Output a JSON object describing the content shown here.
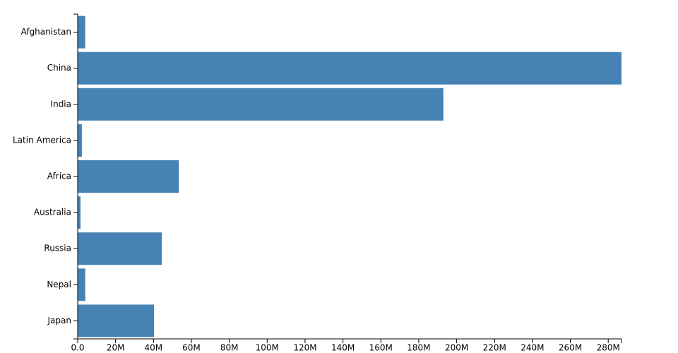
{
  "chart_data": {
    "type": "bar",
    "categories": [
      "Afghanistan",
      "China",
      "India",
      "Latin America",
      "Africa",
      "Australia",
      "Russia",
      "Nepal",
      "Japan"
    ],
    "values": [
      4000000,
      287000000,
      193000000,
      2200000,
      53400000,
      1500000,
      44400000,
      4000000,
      40300000
    ],
    "color": "#4682b4",
    "xlim": [
      0,
      287000000
    ],
    "xticks": [
      {
        "value": 0,
        "label": "0.0"
      },
      {
        "value": 20000000,
        "label": "20M"
      },
      {
        "value": 40000000,
        "label": "40M"
      },
      {
        "value": 60000000,
        "label": "60M"
      },
      {
        "value": 80000000,
        "label": "80M"
      },
      {
        "value": 100000000,
        "label": "100M"
      },
      {
        "value": 120000000,
        "label": "120M"
      },
      {
        "value": 140000000,
        "label": "140M"
      },
      {
        "value": 160000000,
        "label": "160M"
      },
      {
        "value": 180000000,
        "label": "180M"
      },
      {
        "value": 200000000,
        "label": "200M"
      },
      {
        "value": 220000000,
        "label": "220M"
      },
      {
        "value": 240000000,
        "label": "240M"
      },
      {
        "value": 260000000,
        "label": "260M"
      },
      {
        "value": 280000000,
        "label": "280M"
      }
    ],
    "grid": false
  }
}
